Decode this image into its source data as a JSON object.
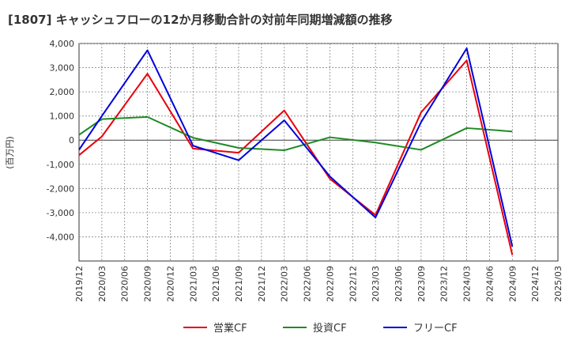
{
  "chart_data": {
    "type": "line",
    "title": "[1807]  キャッシュフローの12か月移動合計の対前年同期増減額の推移",
    "ylabel": "(百万円)",
    "xlabel": "",
    "ylim": [
      -5000,
      4000
    ],
    "yticks": [
      4000,
      3000,
      2000,
      1000,
      0,
      -1000,
      -2000,
      -3000,
      -4000
    ],
    "ytick_labels": [
      "4,000",
      "3,000",
      "2,000",
      "1,000",
      "0",
      "-1,000",
      "-2,000",
      "-3,000",
      "-4,000"
    ],
    "categories": [
      "2019/12",
      "2020/03",
      "2020/06",
      "2020/09",
      "2020/12",
      "2021/03",
      "2021/06",
      "2021/09",
      "2021/12",
      "2022/03",
      "2022/06",
      "2022/09",
      "2022/12",
      "2023/03",
      "2023/06",
      "2023/09",
      "2023/12",
      "2024/03",
      "2024/06",
      "2024/09",
      "2024/12",
      "2025/03"
    ],
    "grid": true,
    "legend_position": "bottom",
    "series": [
      {
        "name": "営業CF",
        "color": "#e8000b",
        "values": [
          -620,
          150,
          null,
          2750,
          null,
          -350,
          null,
          -520,
          null,
          1230,
          null,
          -1600,
          null,
          -3100,
          null,
          1150,
          null,
          3300,
          null,
          -4750,
          null,
          null
        ]
      },
      {
        "name": "投資CF",
        "color": "#1f8b24",
        "values": [
          220,
          870,
          null,
          960,
          null,
          100,
          null,
          -320,
          null,
          -420,
          null,
          120,
          null,
          -100,
          null,
          -400,
          null,
          500,
          null,
          360,
          null,
          null
        ]
      },
      {
        "name": "フリーCF",
        "color": "#0000dd",
        "values": [
          -400,
          1000,
          null,
          3720,
          null,
          -230,
          null,
          -830,
          null,
          820,
          null,
          -1500,
          null,
          -3200,
          null,
          750,
          null,
          3800,
          null,
          -4400,
          null,
          null
        ]
      }
    ]
  }
}
